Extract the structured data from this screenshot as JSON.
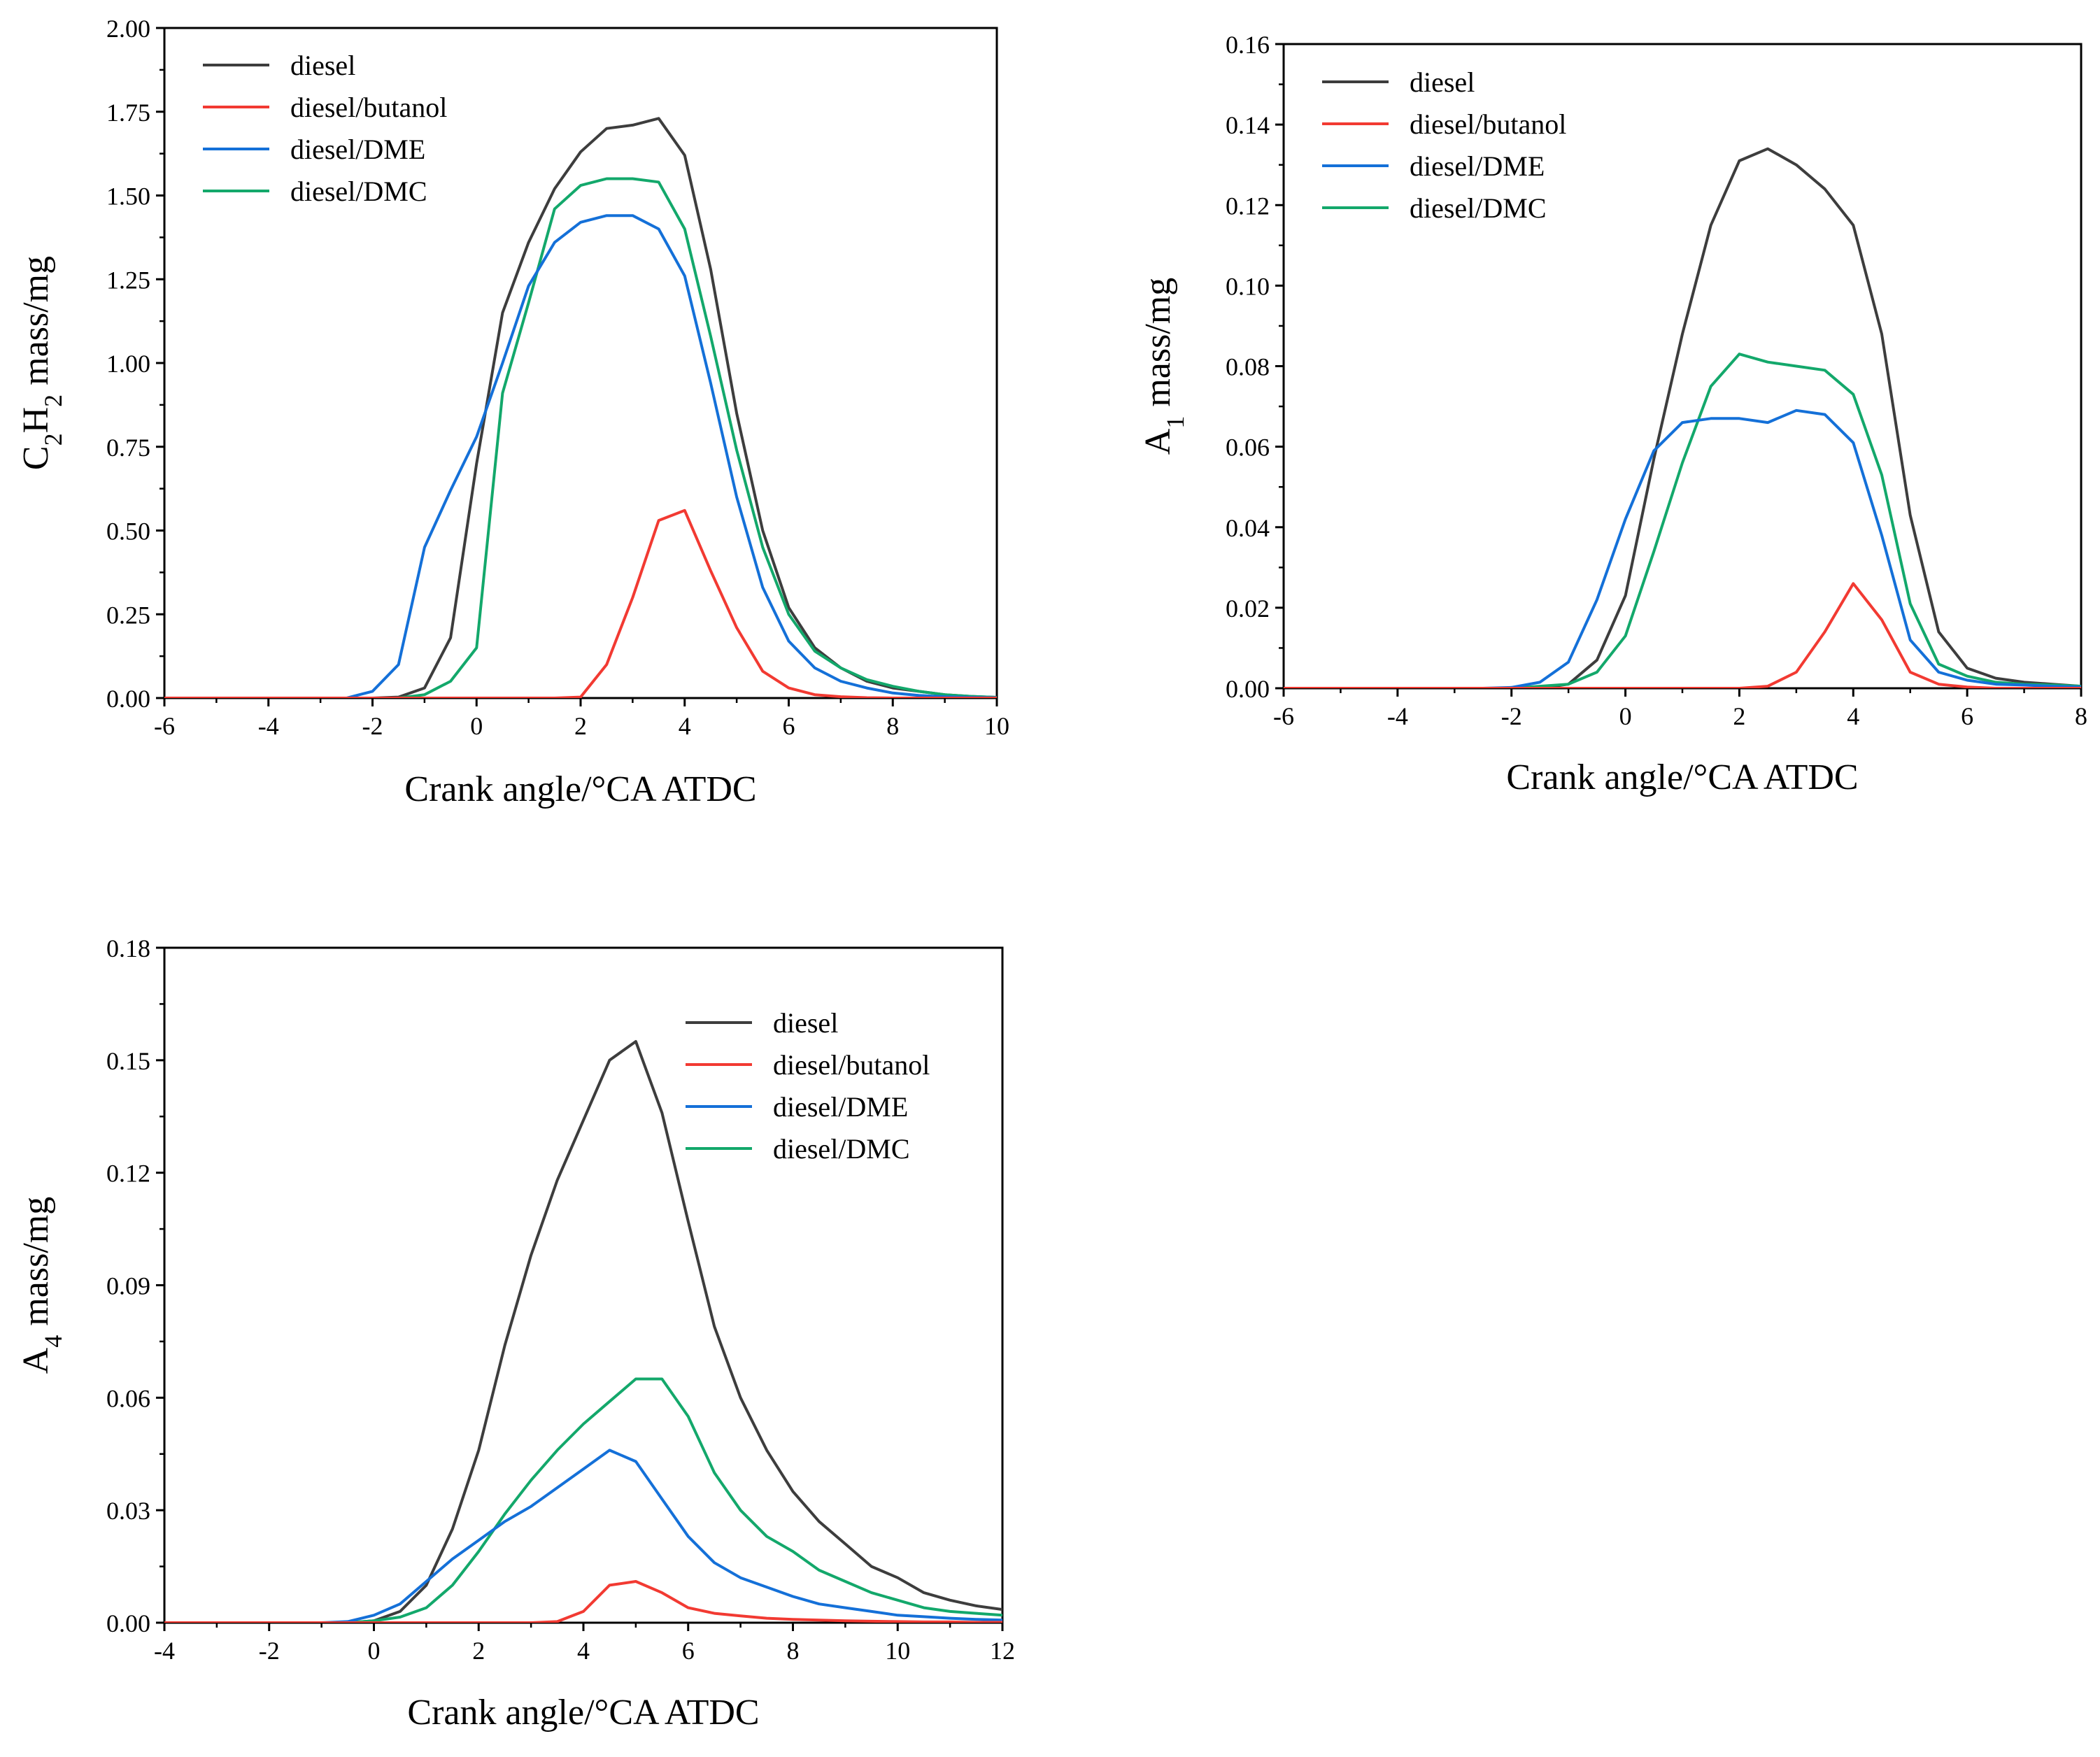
{
  "colors": {
    "diesel": "#3d3d3d",
    "diesel/butanol": "#f23a32",
    "diesel/DME": "#1470d8",
    "diesel/DMC": "#13a86b"
  },
  "chart_data": [
    {
      "id": "c2h2",
      "type": "line",
      "title": "",
      "xlabel": "Crank angle/°CA ATDC",
      "ylabel": "C2H2 mass/mg",
      "ylabel_parts": [
        {
          "t": "C"
        },
        {
          "t": "2",
          "sub": true
        },
        {
          "t": "H"
        },
        {
          "t": "2",
          "sub": true
        },
        {
          "t": " mass/mg"
        }
      ],
      "xlim": [
        -6,
        10
      ],
      "ylim": [
        0,
        2.0
      ],
      "xticks": [
        -6,
        -4,
        -2,
        0,
        2,
        4,
        6,
        8,
        10
      ],
      "yticks": [
        "0.00",
        "0.25",
        "0.50",
        "0.75",
        "1.00",
        "1.25",
        "1.50",
        "1.75",
        "2.00"
      ],
      "legend_position": "top-left",
      "x": [
        -6,
        -5.5,
        -5,
        -4.5,
        -4,
        -3.5,
        -3,
        -2.5,
        -2,
        -1.5,
        -1,
        -0.5,
        0,
        0.5,
        1,
        1.5,
        2,
        2.5,
        3,
        3.5,
        4,
        4.5,
        5,
        5.5,
        6,
        6.5,
        7,
        7.5,
        8,
        8.5,
        9,
        9.5,
        10
      ],
      "series": [
        {
          "name": "diesel",
          "values": [
            0,
            0,
            0,
            0,
            0,
            0,
            0,
            0,
            0,
            0.003,
            0.03,
            0.18,
            0.7,
            1.15,
            1.36,
            1.52,
            1.63,
            1.7,
            1.71,
            1.73,
            1.62,
            1.28,
            0.85,
            0.5,
            0.27,
            0.15,
            0.09,
            0.05,
            0.03,
            0.02,
            0.01,
            0.005,
            0.002
          ]
        },
        {
          "name": "diesel/butanol",
          "values": [
            0,
            0,
            0,
            0,
            0,
            0,
            0,
            0,
            0,
            0,
            0,
            0,
            0,
            0,
            0,
            0,
            0.003,
            0.1,
            0.3,
            0.53,
            0.56,
            0.38,
            0.21,
            0.08,
            0.03,
            0.01,
            0.004,
            0.001,
            0,
            0,
            0,
            0,
            0
          ]
        },
        {
          "name": "diesel/DME",
          "values": [
            0,
            0,
            0,
            0,
            0,
            0,
            0,
            0,
            0.02,
            0.1,
            0.45,
            0.62,
            0.78,
            1.0,
            1.23,
            1.36,
            1.42,
            1.44,
            1.44,
            1.4,
            1.26,
            0.94,
            0.6,
            0.33,
            0.17,
            0.09,
            0.05,
            0.03,
            0.015,
            0.008,
            0.004,
            0.002,
            0.001
          ]
        },
        {
          "name": "diesel/DMC",
          "values": [
            0,
            0,
            0,
            0,
            0,
            0,
            0,
            0,
            0,
            0,
            0.01,
            0.05,
            0.15,
            0.91,
            1.18,
            1.46,
            1.53,
            1.55,
            1.55,
            1.54,
            1.4,
            1.08,
            0.74,
            0.45,
            0.25,
            0.14,
            0.09,
            0.055,
            0.035,
            0.02,
            0.01,
            0.005,
            0.002
          ]
        }
      ]
    },
    {
      "id": "a1",
      "type": "line",
      "title": "",
      "xlabel": "Crank angle/°CA ATDC",
      "ylabel": "A1 mass/mg",
      "ylabel_parts": [
        {
          "t": "A"
        },
        {
          "t": "1",
          "sub": true
        },
        {
          "t": " mass/mg"
        }
      ],
      "xlim": [
        -6,
        8
      ],
      "ylim": [
        0,
        0.16
      ],
      "xticks": [
        -6,
        -4,
        -2,
        0,
        2,
        4,
        6,
        8
      ],
      "yticks": [
        "0.00",
        "0.02",
        "0.04",
        "0.06",
        "0.08",
        "0.10",
        "0.12",
        "0.14",
        "0.16"
      ],
      "legend_position": "top-left",
      "x": [
        -6,
        -5.5,
        -5,
        -4.5,
        -4,
        -3.5,
        -3,
        -2.5,
        -2,
        -1.5,
        -1,
        -0.5,
        0,
        0.5,
        1,
        1.5,
        2,
        2.5,
        3,
        3.5,
        4,
        4.5,
        5,
        5.5,
        6,
        6.5,
        7,
        7.5,
        8
      ],
      "series": [
        {
          "name": "diesel",
          "values": [
            0,
            0,
            0,
            0,
            0,
            0,
            0,
            0,
            0,
            0,
            0.001,
            0.007,
            0.023,
            0.057,
            0.088,
            0.115,
            0.131,
            0.134,
            0.13,
            0.124,
            0.115,
            0.088,
            0.043,
            0.014,
            0.005,
            0.0025,
            0.0015,
            0.001,
            0.0005
          ]
        },
        {
          "name": "diesel/butanol",
          "values": [
            0,
            0,
            0,
            0,
            0,
            0,
            0,
            0,
            0,
            0,
            0,
            0,
            0,
            0,
            0,
            0,
            0,
            0.0005,
            0.004,
            0.014,
            0.026,
            0.017,
            0.004,
            0.001,
            0.0003,
            0,
            0,
            0,
            0
          ]
        },
        {
          "name": "diesel/DME",
          "values": [
            0,
            0,
            0,
            0,
            0,
            0,
            0,
            0,
            0.0002,
            0.0015,
            0.0065,
            0.022,
            0.042,
            0.059,
            0.066,
            0.067,
            0.067,
            0.066,
            0.069,
            0.068,
            0.061,
            0.038,
            0.012,
            0.004,
            0.002,
            0.001,
            0.0008,
            0.0005,
            0.0003
          ]
        },
        {
          "name": "diesel/DMC",
          "values": [
            0,
            0,
            0,
            0,
            0,
            0,
            0,
            0,
            0,
            0.0005,
            0.001,
            0.004,
            0.013,
            0.034,
            0.056,
            0.075,
            0.083,
            0.081,
            0.08,
            0.079,
            0.073,
            0.053,
            0.021,
            0.006,
            0.003,
            0.0015,
            0.001,
            0.0008,
            0.0005
          ]
        }
      ]
    },
    {
      "id": "a4",
      "type": "line",
      "title": "",
      "xlabel": "Crank angle/°CA ATDC",
      "ylabel": "A4 mass/mg",
      "ylabel_parts": [
        {
          "t": "A"
        },
        {
          "t": "4",
          "sub": true
        },
        {
          "t": " mass/mg"
        }
      ],
      "xlim": [
        -4,
        12
      ],
      "ylim": [
        0,
        0.18
      ],
      "xticks": [
        -4,
        -2,
        0,
        2,
        4,
        6,
        8,
        10,
        12
      ],
      "yticks": [
        "0.00",
        "0.03",
        "0.06",
        "0.09",
        "0.12",
        "0.15",
        "0.18"
      ],
      "legend_position": "top-right",
      "x": [
        -4,
        -3.5,
        -3,
        -2.5,
        -2,
        -1.5,
        -1,
        -0.5,
        0,
        0.5,
        1,
        1.5,
        2,
        2.5,
        3,
        3.5,
        4,
        4.5,
        5,
        5.5,
        6,
        6.5,
        7,
        7.5,
        8,
        8.5,
        9,
        9.5,
        10,
        10.5,
        11,
        11.5,
        12
      ],
      "series": [
        {
          "name": "diesel",
          "values": [
            0,
            0,
            0,
            0,
            0,
            0,
            0,
            0,
            0.0005,
            0.003,
            0.01,
            0.025,
            0.046,
            0.074,
            0.098,
            0.118,
            0.134,
            0.15,
            0.155,
            0.136,
            0.107,
            0.079,
            0.06,
            0.046,
            0.035,
            0.027,
            0.021,
            0.015,
            0.012,
            0.008,
            0.006,
            0.0045,
            0.0035
          ]
        },
        {
          "name": "diesel/butanol",
          "values": [
            0,
            0,
            0,
            0,
            0,
            0,
            0,
            0,
            0,
            0,
            0,
            0,
            0,
            0,
            0,
            0.0003,
            0.003,
            0.01,
            0.011,
            0.008,
            0.004,
            0.0025,
            0.0018,
            0.0012,
            0.0009,
            0.0007,
            0.0005,
            0.0004,
            0.0003,
            0.0002,
            0.0002,
            0.0001,
            0.0001
          ]
        },
        {
          "name": "diesel/DME",
          "values": [
            0,
            0,
            0,
            0,
            0,
            0,
            0,
            0.0003,
            0.002,
            0.005,
            0.011,
            0.017,
            0.022,
            0.027,
            0.031,
            0.036,
            0.041,
            0.046,
            0.043,
            0.033,
            0.023,
            0.016,
            0.012,
            0.0095,
            0.007,
            0.005,
            0.004,
            0.003,
            0.002,
            0.0016,
            0.0012,
            0.0009,
            0.0007
          ]
        },
        {
          "name": "diesel/DMC",
          "values": [
            0,
            0,
            0,
            0,
            0,
            0,
            0,
            0,
            0.0005,
            0.0015,
            0.004,
            0.01,
            0.019,
            0.029,
            0.038,
            0.046,
            0.053,
            0.059,
            0.065,
            0.065,
            0.055,
            0.04,
            0.03,
            0.023,
            0.019,
            0.014,
            0.011,
            0.008,
            0.006,
            0.004,
            0.003,
            0.0025,
            0.002
          ]
        }
      ]
    }
  ]
}
